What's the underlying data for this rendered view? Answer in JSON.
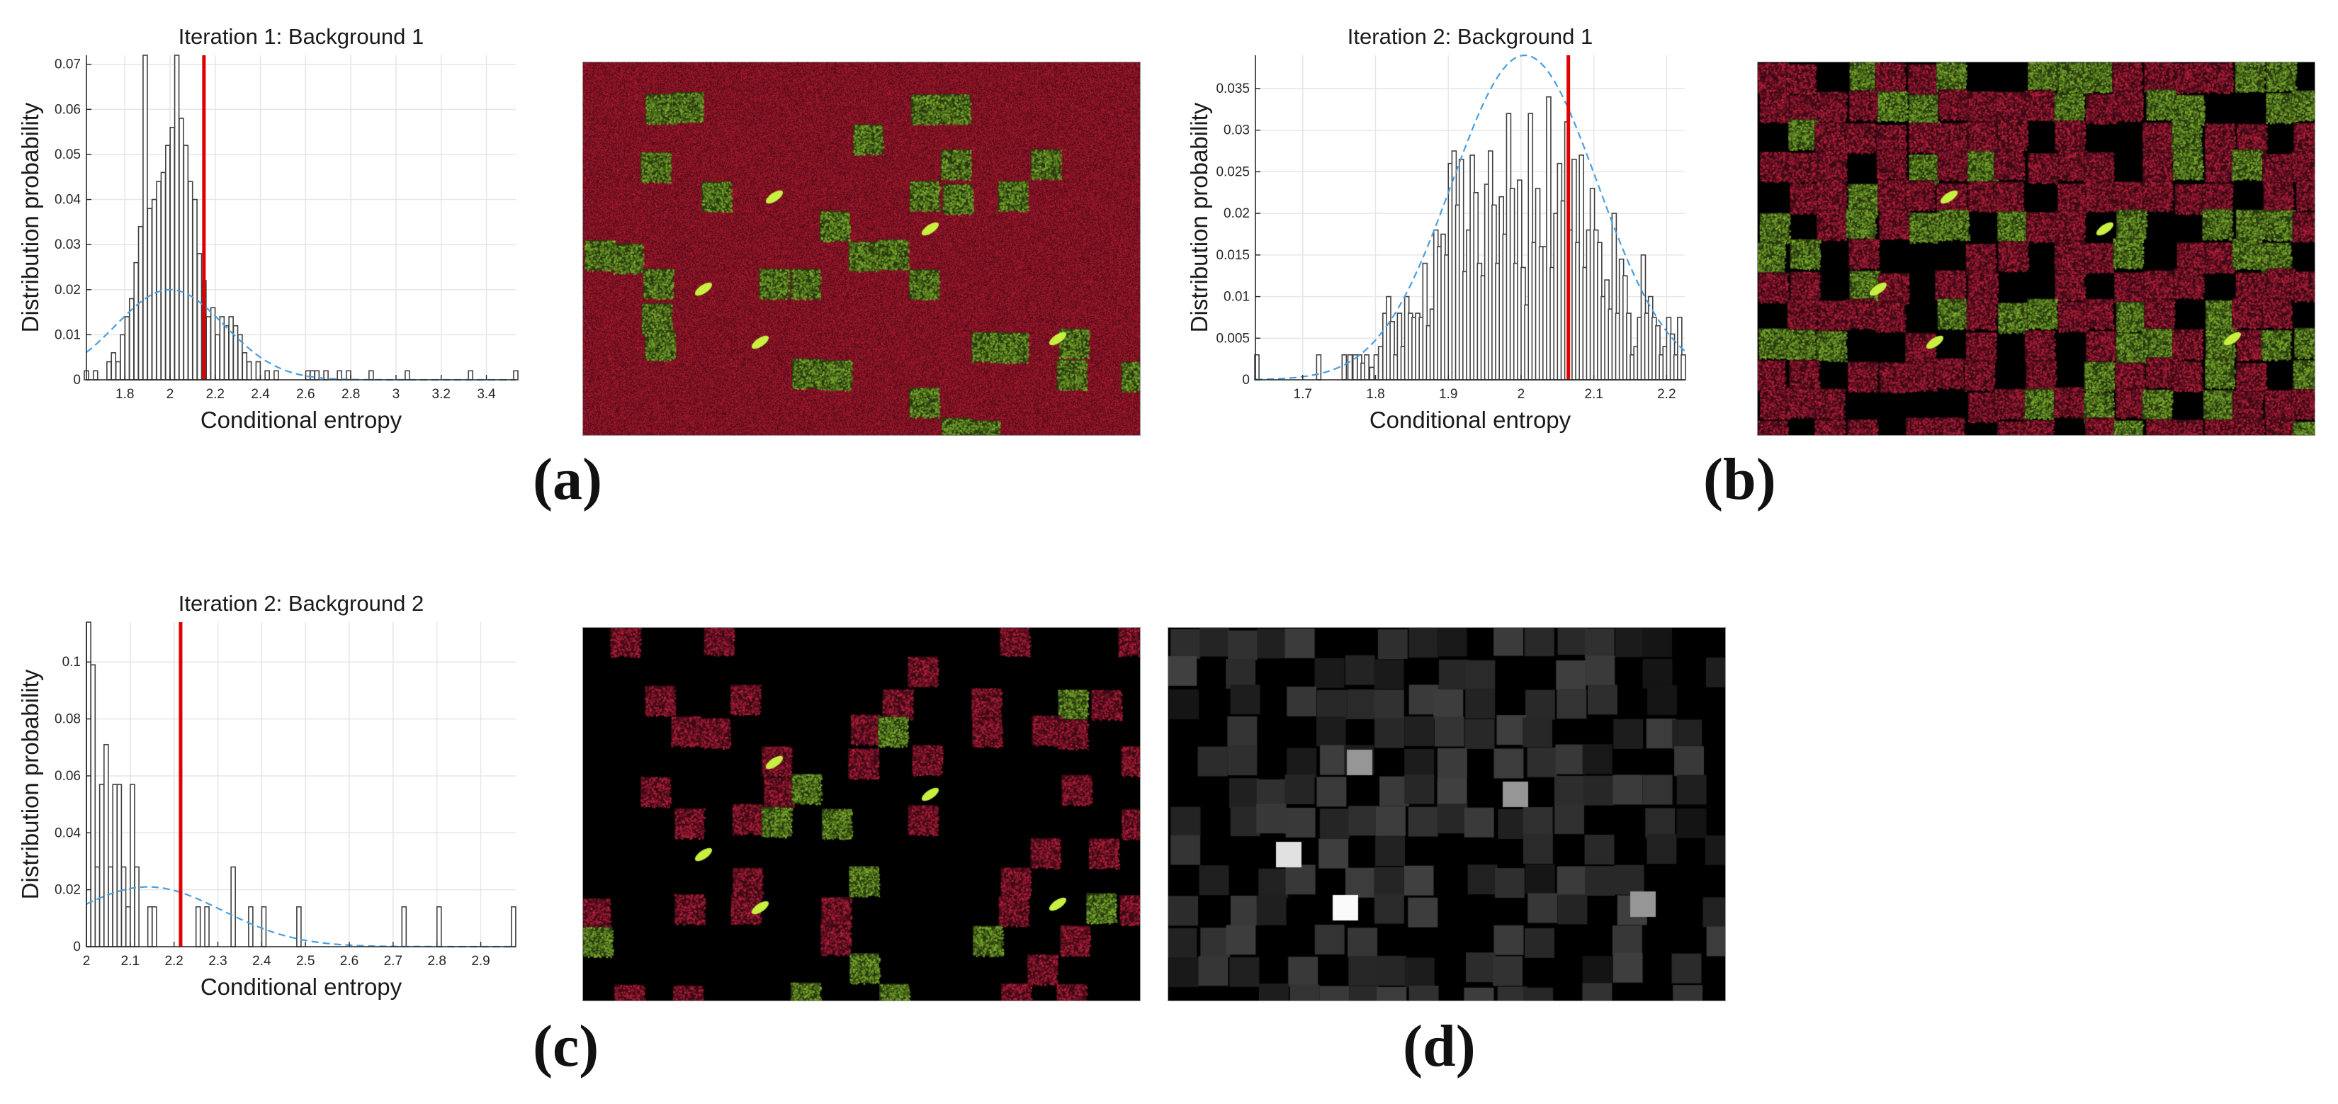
{
  "panel_labels": [
    "(a)",
    "(b)",
    "(c)",
    "(d)"
  ],
  "images": [
    {
      "name": "segmentation-iter1",
      "kind": "red-green-overlay"
    },
    {
      "name": "segmentation-iter2-bg1",
      "kind": "red-green-black-overlay"
    },
    {
      "name": "segmentation-iter2-bg2",
      "kind": "sparse-red-green-overlay"
    },
    {
      "name": "conditional-entropy-map",
      "kind": "grayscale-map"
    }
  ],
  "colors": {
    "bar_edge": "#404040",
    "bar_fill": "#ffffff",
    "threshold_line": "#e00000",
    "fit_curve": "#4a9ee0",
    "grid": "#e6e6e6",
    "axis": "#262626"
  },
  "chart_data": [
    {
      "type": "bar",
      "title": "Iteration 1: Background 1",
      "xlabel": "Conditional entropy",
      "ylabel": "Distribution probability",
      "xlim": [
        1.63,
        3.53
      ],
      "ylim": [
        0,
        0.072
      ],
      "xticks": [
        1.8,
        2,
        2.2,
        2.4,
        2.6,
        2.8,
        3,
        3.2,
        3.4
      ],
      "xticklabels": [
        "1.8",
        "2",
        "2.2",
        "2.4",
        "2.6",
        "2.8",
        "3",
        "3.2",
        "3.4"
      ],
      "yticks": [
        0,
        0.01,
        0.02,
        0.03,
        0.04,
        0.05,
        0.06,
        0.07
      ],
      "yticklabels": [
        "0",
        "0.01",
        "0.02",
        "0.03",
        "0.04",
        "0.05",
        "0.06",
        "0.07"
      ],
      "grid": true,
      "bin_width": 0.012,
      "x": [
        1.63,
        1.67,
        1.73,
        1.75,
        1.77,
        1.79,
        1.81,
        1.83,
        1.85,
        1.87,
        1.89,
        1.91,
        1.93,
        1.95,
        1.97,
        1.99,
        2.01,
        2.03,
        2.05,
        2.07,
        2.09,
        2.11,
        2.13,
        2.15,
        2.17,
        2.19,
        2.21,
        2.23,
        2.25,
        2.27,
        2.29,
        2.31,
        2.33,
        2.35,
        2.39,
        2.43,
        2.47,
        2.61,
        2.63,
        2.65,
        2.69,
        2.75,
        2.79,
        2.89,
        3.05,
        3.33,
        3.53
      ],
      "values": [
        0.002,
        0.002,
        0.004,
        0.006,
        0.004,
        0.01,
        0.014,
        0.018,
        0.026,
        0.034,
        0.072,
        0.038,
        0.04,
        0.044,
        0.046,
        0.052,
        0.056,
        0.072,
        0.058,
        0.052,
        0.044,
        0.04,
        0.028,
        0.022,
        0.014,
        0.016,
        0.01,
        0.014,
        0.012,
        0.014,
        0.012,
        0.01,
        0.006,
        0.004,
        0.004,
        0.002,
        0.002,
        0.002,
        0.002,
        0.002,
        0.002,
        0.002,
        0.002,
        0.002,
        0.002,
        0.002,
        0.002
      ],
      "threshold": 2.15,
      "fit": {
        "type": "normal",
        "mean": 2.0,
        "std": 0.24,
        "peak": 0.02
      }
    },
    {
      "type": "bar",
      "title": "Iteration 2: Background 1",
      "xlabel": "Conditional entropy",
      "ylabel": "Distribution probability",
      "xlim": [
        1.635,
        2.225
      ],
      "ylim": [
        0,
        0.039
      ],
      "xticks": [
        1.7,
        1.8,
        1.9,
        2,
        2.1,
        2.2
      ],
      "xticklabels": [
        "1.7",
        "1.8",
        "1.9",
        "2",
        "2.1",
        "2.2"
      ],
      "yticks": [
        0,
        0.005,
        0.01,
        0.015,
        0.02,
        0.025,
        0.03,
        0.035
      ],
      "yticklabels": [
        "0",
        "0.005",
        "0.01",
        "0.015",
        "0.02",
        "0.025",
        "0.03",
        "0.035"
      ],
      "grid": true,
      "bin_width": 0.004,
      "x": [
        1.637,
        1.722,
        1.757,
        1.765,
        1.772,
        1.778,
        1.783,
        1.788,
        1.795,
        1.801,
        1.807,
        1.813,
        1.818,
        1.823,
        1.828,
        1.833,
        1.838,
        1.843,
        1.848,
        1.853,
        1.858,
        1.863,
        1.868,
        1.873,
        1.878,
        1.883,
        1.888,
        1.893,
        1.898,
        1.903,
        1.908,
        1.913,
        1.918,
        1.923,
        1.928,
        1.933,
        1.938,
        1.943,
        1.948,
        1.953,
        1.958,
        1.963,
        1.968,
        1.973,
        1.978,
        1.983,
        1.988,
        1.993,
        1.998,
        2.003,
        2.008,
        2.013,
        2.018,
        2.023,
        2.028,
        2.033,
        2.038,
        2.043,
        2.048,
        2.053,
        2.058,
        2.063,
        2.068,
        2.073,
        2.078,
        2.083,
        2.088,
        2.093,
        2.098,
        2.103,
        2.108,
        2.113,
        2.118,
        2.123,
        2.128,
        2.133,
        2.138,
        2.143,
        2.148,
        2.153,
        2.158,
        2.163,
        2.168,
        2.173,
        2.178,
        2.183,
        2.188,
        2.193,
        2.198,
        2.203,
        2.208,
        2.213,
        2.218,
        2.223
      ],
      "values": [
        0.003,
        0.003,
        0.003,
        0.003,
        0.003,
        0.003,
        0.002,
        0.003,
        0.0015,
        0.003,
        0.004,
        0.008,
        0.01,
        0.007,
        0.003,
        0.008,
        0.004,
        0.01,
        0.008,
        0.0075,
        0.008,
        0.0075,
        0.014,
        0.0065,
        0.0085,
        0.018,
        0.016,
        0.0175,
        0.015,
        0.026,
        0.0275,
        0.021,
        0.0265,
        0.013,
        0.018,
        0.027,
        0.0225,
        0.014,
        0.0125,
        0.0235,
        0.0275,
        0.021,
        0.014,
        0.022,
        0.0175,
        0.032,
        0.023,
        0.014,
        0.024,
        0.0135,
        0.009,
        0.032,
        0.0165,
        0.023,
        0.016,
        0.016,
        0.034,
        0.0135,
        0.02,
        0.026,
        0.0215,
        0.031,
        0.018,
        0.0265,
        0.0165,
        0.027,
        0.0135,
        0.018,
        0.023,
        0.018,
        0.0165,
        0.01,
        0.012,
        0.0085,
        0.02,
        0.008,
        0.0145,
        0.0125,
        0.008,
        0.003,
        0.004,
        0.0075,
        0.015,
        0.008,
        0.01,
        0.0075,
        0.0065,
        0.003,
        0.004,
        0.0075,
        0.0055,
        0.003,
        0.0075,
        0.003
      ],
      "threshold": 2.065,
      "fit": {
        "type": "normal",
        "mean": 2.005,
        "std": 0.1,
        "peak": 0.039
      }
    },
    {
      "type": "bar",
      "title": "Iteration 2: Background 2",
      "xlabel": "Conditional entropy",
      "ylabel": "Distribution probability",
      "xlim": [
        2.0,
        2.98
      ],
      "ylim": [
        0,
        0.114
      ],
      "xticks": [
        2,
        2.1,
        2.2,
        2.3,
        2.4,
        2.5,
        2.6,
        2.7,
        2.8,
        2.9
      ],
      "xticklabels": [
        "2",
        "2.1",
        "2.2",
        "2.3",
        "2.4",
        "2.5",
        "2.6",
        "2.7",
        "2.8",
        "2.9"
      ],
      "yticks": [
        0,
        0.02,
        0.04,
        0.06,
        0.08,
        0.1
      ],
      "yticklabels": [
        "0",
        "0.02",
        "0.04",
        "0.06",
        "0.08",
        "0.1"
      ],
      "grid": true,
      "bin_width": 0.008,
      "x": [
        2.005,
        2.015,
        2.025,
        2.035,
        2.045,
        2.055,
        2.065,
        2.075,
        2.085,
        2.095,
        2.105,
        2.115,
        2.145,
        2.155,
        2.255,
        2.275,
        2.335,
        2.375,
        2.405,
        2.485,
        2.725,
        2.805,
        2.975
      ],
      "values": [
        0.114,
        0.099,
        0.028,
        0.057,
        0.071,
        0.028,
        0.057,
        0.057,
        0.028,
        0.014,
        0.057,
        0.028,
        0.014,
        0.014,
        0.014,
        0.014,
        0.028,
        0.014,
        0.014,
        0.014,
        0.014,
        0.014,
        0.014
      ],
      "threshold": 2.215,
      "fit": {
        "type": "normal",
        "mean": 2.14,
        "std": 0.17,
        "peak": 0.021
      }
    }
  ]
}
